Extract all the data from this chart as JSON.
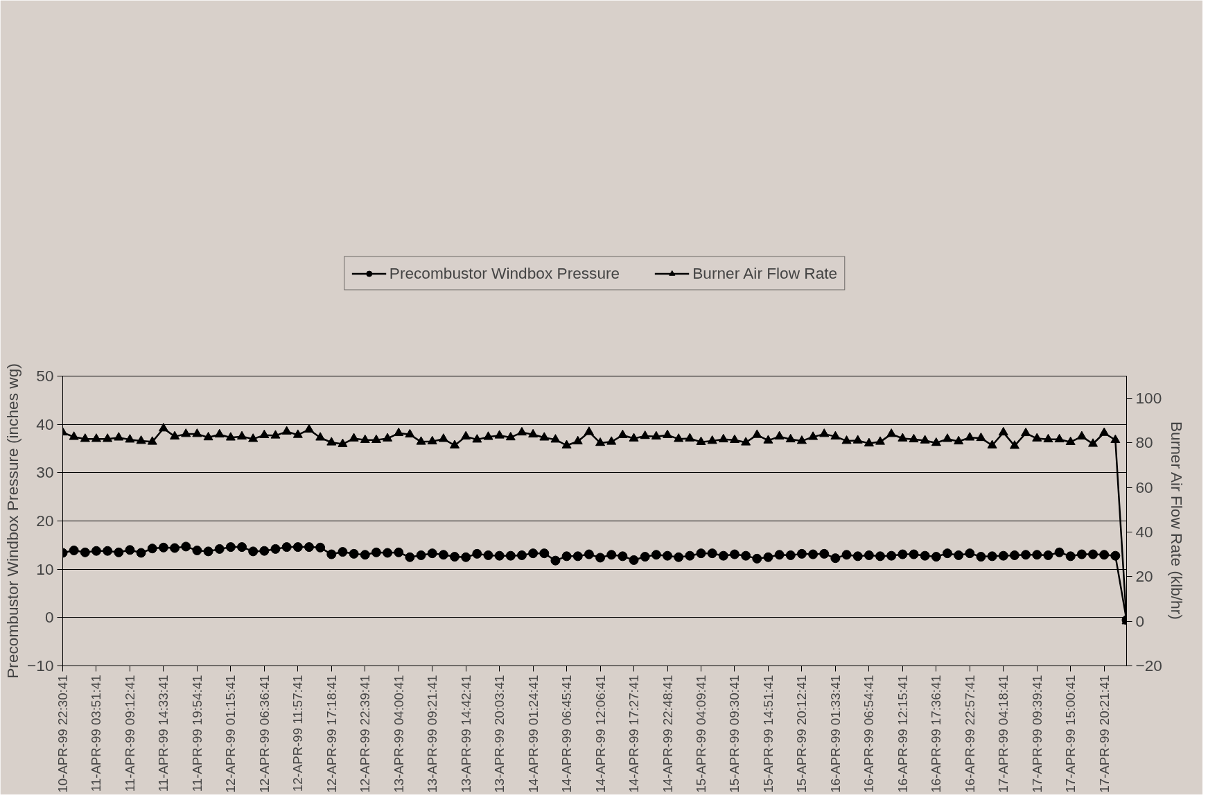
{
  "chart_data": {
    "type": "line",
    "ylabel": "Precombustor Windbox Pressure (inches wg)",
    "y2label": "Burner Air Flow Rate (klb/hr)",
    "categories": [
      "10-APR-99 22:30:41",
      null,
      null,
      "11-APR-99 03:51:41",
      null,
      null,
      "11-APR-99 09:12:41",
      null,
      null,
      "11-APR-99 14:33:41",
      null,
      null,
      "11-APR-99 19:54:41",
      null,
      null,
      "12-APR-99 01:15:41",
      null,
      null,
      "12-APR-99 06:36:41",
      null,
      null,
      "12-APR-99 11:57:41",
      null,
      null,
      "12-APR-99 17:18:41",
      null,
      null,
      "12-APR-99 22:39:41",
      null,
      null,
      "13-APR-99 04:00:41",
      null,
      null,
      "13-APR-99 09:21:41",
      null,
      null,
      "13-APR-99 14:42:41",
      null,
      null,
      "13-APR-99 20:03:41",
      null,
      null,
      "14-APR-99 01:24:41",
      null,
      null,
      "14-APR-99 06:45:41",
      null,
      null,
      "14-APR-99 12:06:41",
      null,
      null,
      "14-APR-99 17:27:41",
      null,
      null,
      "14-APR-99 22:48:41",
      null,
      null,
      "15-APR-99 04:09:41",
      null,
      null,
      "15-APR-99 09:30:41",
      null,
      null,
      "15-APR-99 14:51:41",
      null,
      null,
      "15-APR-99 20:12:41",
      null,
      null,
      "16-APR-99 01:33:41",
      null,
      null,
      "16-APR-99 06:54:41",
      null,
      null,
      "16-APR-99 12:15:41",
      null,
      null,
      "16-APR-99 17:36:41",
      null,
      null,
      "16-APR-99 22:57:41",
      null,
      null,
      "17-APR-99 04:18:41",
      null,
      null,
      "17-APR-99 09:39:41",
      null,
      null,
      "17-APR-99 15:00:41",
      null,
      null,
      "17-APR-99 20:21:41",
      null,
      null
    ],
    "series": [
      {
        "name": "Precombustor Windbox Pressure",
        "color": "#000000",
        "marker": "circle",
        "values": [
          13.4,
          13.9,
          13.5,
          13.8,
          13.8,
          13.5,
          14.0,
          13.4,
          14.3,
          14.5,
          14.4,
          14.7,
          13.9,
          13.7,
          14.2,
          14.6,
          14.6,
          13.7,
          13.8,
          14.2,
          14.6,
          14.6,
          14.6,
          14.5,
          13.1,
          13.6,
          13.2,
          13.0,
          13.5,
          13.4,
          13.5,
          12.5,
          12.9,
          13.3,
          13.0,
          12.6,
          12.5,
          13.2,
          12.9,
          12.8,
          12.8,
          12.9,
          13.3,
          13.3,
          11.8,
          12.7,
          12.7,
          13.1,
          12.4,
          13.0,
          12.7,
          11.9,
          12.6,
          13.0,
          12.8,
          12.5,
          12.8,
          13.3,
          13.3,
          12.8,
          13.1,
          12.8,
          12.2,
          12.5,
          13.0,
          12.9,
          13.2,
          13.1,
          13.2,
          12.3,
          13.0,
          12.7,
          12.9,
          12.7,
          12.8,
          13.1,
          13.1,
          12.8,
          12.6,
          13.3,
          12.9,
          13.3,
          12.6,
          12.7,
          12.8,
          12.9,
          13.0,
          13.0,
          12.9,
          13.5,
          12.7,
          13.1,
          13.1,
          13.0,
          12.8,
          -0.5
        ]
      },
      {
        "name": "Burner Air Flow Rate",
        "color": "#000000",
        "marker": "triangle",
        "axis": "y2",
        "values": [
          84.7,
          82.7,
          81.8,
          81.8,
          81.8,
          82.4,
          81.5,
          80.9,
          80.5,
          86.5,
          82.9,
          84.0,
          84.0,
          82.5,
          83.8,
          82.4,
          82.9,
          81.8,
          83.5,
          83.3,
          85.1,
          83.6,
          86.0,
          82.4,
          80.2,
          79.5,
          82.0,
          81.3,
          81.3,
          82.0,
          84.4,
          83.8,
          80.5,
          80.7,
          81.8,
          78.9,
          82.9,
          81.5,
          82.7,
          83.3,
          82.5,
          84.7,
          83.8,
          82.4,
          81.5,
          78.9,
          80.7,
          84.9,
          80.0,
          80.5,
          83.5,
          82.0,
          83.1,
          82.9,
          83.5,
          81.8,
          82.0,
          80.4,
          80.9,
          81.6,
          81.3,
          80.2,
          83.6,
          81.1,
          82.9,
          81.6,
          80.9,
          82.7,
          84.0,
          82.9,
          80.9,
          81.1,
          79.8,
          80.5,
          84.0,
          82.0,
          81.6,
          81.1,
          80.0,
          81.8,
          80.7,
          82.4,
          82.2,
          78.9,
          84.7,
          78.7,
          84.4,
          82.0,
          81.6,
          81.6,
          80.4,
          82.9,
          79.6,
          84.5,
          81.3,
          0
        ]
      }
    ],
    "ylim": [
      -10,
      50
    ],
    "yticks": [
      -10,
      0,
      10,
      20,
      30,
      40,
      50
    ],
    "y2lim": [
      -20,
      110
    ],
    "y2ticks": [
      -20,
      0,
      20,
      40,
      60,
      80,
      100
    ],
    "grid": "y",
    "legend": "top",
    "line_style": "solid"
  }
}
